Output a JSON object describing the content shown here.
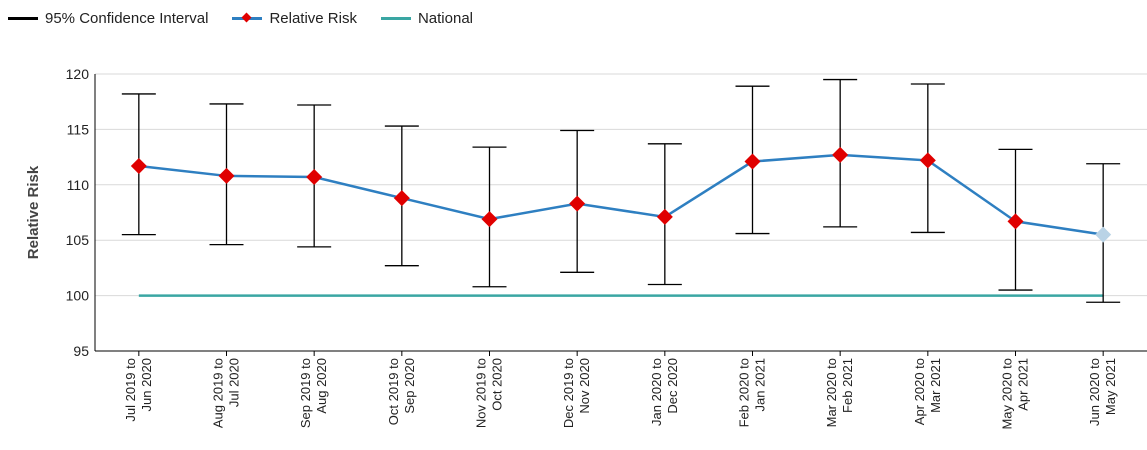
{
  "legend": {
    "ci_label": "95% Confidence Interval",
    "rr_label": "Relative Risk",
    "national_label": "National"
  },
  "colors": {
    "ci": "#000000",
    "relative_risk_line": "#2e7fc1",
    "relative_risk_marker": "#e00000",
    "latest_marker": "#b9d3e6",
    "national": "#3aa6a3",
    "grid": "#d9d9d9"
  },
  "chart_data": {
    "type": "line",
    "title": "",
    "xlabel": "",
    "ylabel": "Relative Risk",
    "ylim": [
      95,
      120
    ],
    "yticks": [
      95,
      100,
      105,
      110,
      115,
      120
    ],
    "grid": true,
    "legend_position": "top-left",
    "categories": [
      [
        "Jul 2019 to",
        "Jun 2020"
      ],
      [
        "Aug 2019 to",
        "Jul 2020"
      ],
      [
        "Sep 2019 to",
        "Aug 2020"
      ],
      [
        "Oct 2019 to",
        "Sep 2020"
      ],
      [
        "Nov 2019 to",
        "Oct 2020"
      ],
      [
        "Dec 2019 to",
        "Nov 2020"
      ],
      [
        "Jan 2020 to",
        "Dec 2020"
      ],
      [
        "Feb 2020 to",
        "Jan 2021"
      ],
      [
        "Mar 2020 to",
        "Feb 2021"
      ],
      [
        "Apr 2020 to",
        "Mar 2021"
      ],
      [
        "May 2020 to",
        "Apr 2021"
      ],
      [
        "Jun 2020 to",
        "May 2021"
      ]
    ],
    "series": [
      {
        "name": "Relative Risk",
        "values": [
          111.7,
          110.8,
          110.7,
          108.8,
          106.9,
          108.3,
          107.1,
          112.1,
          112.7,
          112.2,
          106.7,
          105.5
        ]
      },
      {
        "name": "95% Confidence Interval",
        "lower": [
          105.5,
          104.6,
          104.4,
          102.7,
          100.8,
          102.1,
          101.0,
          105.6,
          106.2,
          105.7,
          100.5,
          99.4
        ],
        "upper": [
          118.2,
          117.3,
          117.2,
          115.3,
          113.4,
          114.9,
          113.7,
          118.9,
          119.5,
          119.1,
          113.2,
          111.9
        ]
      },
      {
        "name": "National",
        "values": [
          100,
          100,
          100,
          100,
          100,
          100,
          100,
          100,
          100,
          100,
          100,
          100
        ]
      }
    ]
  }
}
